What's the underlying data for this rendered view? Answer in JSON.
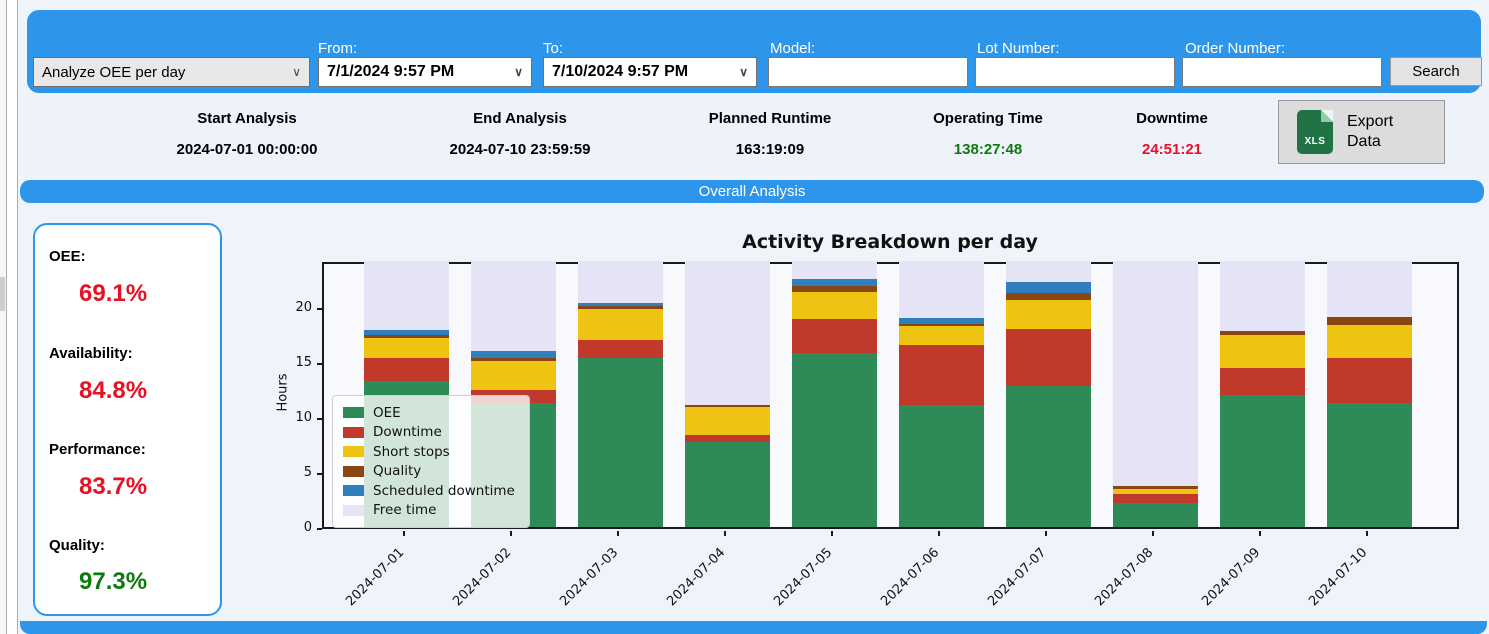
{
  "colors": {
    "accent_blue": "#2e96ea",
    "good_green": "#0e7a0e",
    "bad_red": "#e81123"
  },
  "toolbar": {
    "analysis_type": {
      "value": "Analyze OEE per day"
    },
    "from": {
      "label": "From:",
      "value": "7/1/2024 9:57 PM"
    },
    "to": {
      "label": "To:",
      "value": "7/10/2024 9:57 PM"
    },
    "model": {
      "label": "Model:",
      "value": ""
    },
    "lot_number": {
      "label": "Lot Number:",
      "value": ""
    },
    "order_number": {
      "label": "Order Number:",
      "value": ""
    },
    "search_label": "Search"
  },
  "summary": {
    "start_analysis": {
      "label": "Start Analysis",
      "value": "2024-07-01 00:00:00"
    },
    "end_analysis": {
      "label": "End Analysis",
      "value": "2024-07-10 23:59:59"
    },
    "planned_runtime": {
      "label": "Planned Runtime",
      "value": "163:19:09"
    },
    "operating_time": {
      "label": "Operating Time",
      "value": "138:27:48"
    },
    "downtime": {
      "label": "Downtime",
      "value": "24:51:21"
    },
    "export": {
      "line1": "Export",
      "line2": "Data",
      "icon": "xls-file-icon",
      "icon_text": "XLS"
    }
  },
  "section": {
    "title": "Overall Analysis"
  },
  "kpis": [
    {
      "label": "OEE:",
      "value": "69.1%",
      "color": "#e81123"
    },
    {
      "label": "Availability:",
      "value": "84.8%",
      "color": "#e81123"
    },
    {
      "label": "Performance:",
      "value": "83.7%",
      "color": "#e81123"
    },
    {
      "label": "Quality:",
      "value": "97.3%",
      "color": "#0e7a0e"
    }
  ],
  "chart_data": {
    "type": "bar",
    "stacked": true,
    "title": "Activity Breakdown per day",
    "xlabel": "",
    "ylabel": "Hours",
    "ylim": [
      0,
      24.3
    ],
    "yticks": [
      0,
      5,
      10,
      15,
      20
    ],
    "grid": false,
    "legend_position": "lower-left-inside",
    "categories": [
      "2024-07-01",
      "2024-07-02",
      "2024-07-03",
      "2024-07-04",
      "2024-07-05",
      "2024-07-06",
      "2024-07-07",
      "2024-07-08",
      "2024-07-09",
      "2024-07-10"
    ],
    "series": [
      {
        "name": "OEE",
        "color": "#2e8b57",
        "values": [
          13.3,
          11.3,
          15.4,
          7.7,
          15.8,
          11.1,
          12.8,
          2.2,
          12.0,
          11.3
        ]
      },
      {
        "name": "Downtime",
        "color": "#c0392b",
        "values": [
          2.1,
          1.2,
          1.6,
          0.7,
          3.1,
          5.5,
          5.2,
          0.8,
          2.5,
          4.1
        ]
      },
      {
        "name": "Short stops",
        "color": "#efc311",
        "values": [
          1.8,
          2.6,
          2.8,
          2.5,
          2.5,
          1.7,
          2.7,
          0.5,
          3.0,
          3.0
        ]
      },
      {
        "name": "Quality",
        "color": "#8b4513",
        "values": [
          0.3,
          0.3,
          0.3,
          0.2,
          0.5,
          0.2,
          0.6,
          0.2,
          0.3,
          0.7
        ]
      },
      {
        "name": "Scheduled downtime",
        "color": "#2e80bd",
        "values": [
          0.4,
          0.6,
          0.3,
          0.0,
          0.7,
          0.5,
          1.0,
          0.0,
          0.0,
          0.0
        ]
      },
      {
        "name": "Free time",
        "color": "#e4e4f6",
        "values": [
          6.3,
          8.2,
          3.8,
          13.1,
          1.6,
          5.2,
          1.9,
          20.5,
          6.4,
          5.1
        ]
      }
    ]
  }
}
